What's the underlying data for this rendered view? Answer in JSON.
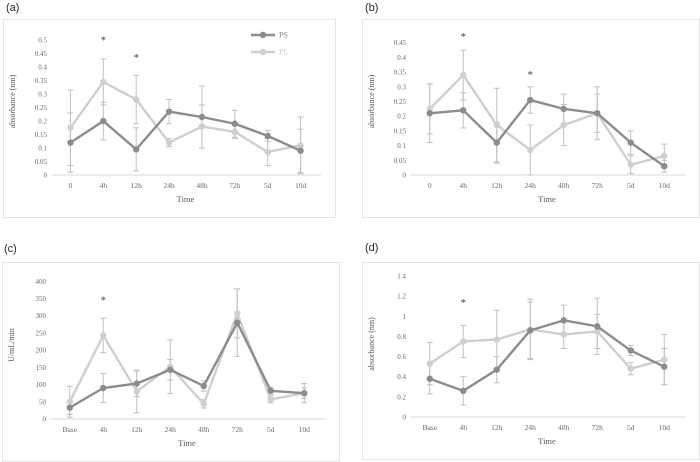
{
  "figure": {
    "background": "#ffffff"
  },
  "palette": {
    "series": [
      "#8c8c8c",
      "#cfcfcf"
    ],
    "error_bar": "#c1c1c1",
    "axis_line": "#d9d9d9",
    "tick_text": "#6b6b6b",
    "axis_title_text": "#595959",
    "panel_border": "#e5e5e5",
    "panel_label_text": "#2b2b2b",
    "asterisk": "#3d3d3d"
  },
  "chart_data": [
    {
      "panel_label": "(a)",
      "type": "line",
      "title": "",
      "xlabel": "Time",
      "ylabel": "absorbance (nm)",
      "categories": [
        "0",
        "4h",
        "12h",
        "24h",
        "48h",
        "72h",
        "5d",
        "10d"
      ],
      "ylim": [
        0,
        0.545
      ],
      "yticks": [
        "0",
        "0.05",
        "0.1",
        "0.15",
        "0.2",
        "0.25",
        "0.3",
        "0.35",
        "0.4",
        "0.45",
        "0.5"
      ],
      "grid": false,
      "legend_items": [
        "PS",
        "PL"
      ],
      "legend_position": "top-right",
      "series": [
        {
          "name": "PS",
          "values": [
            0.12,
            0.2,
            0.095,
            0.235,
            0.215,
            0.19,
            0.145,
            0.09
          ],
          "err": [
            0.11,
            0.07,
            0.08,
            0.045,
            0.115,
            0.05,
            0.02,
            0.08
          ]
        },
        {
          "name": "PL",
          "values": [
            0.175,
            0.345,
            0.28,
            0.12,
            0.18,
            0.16,
            0.085,
            0.11
          ],
          "err": [
            0.14,
            0.085,
            0.09,
            0.015,
            0.08,
            0.025,
            0.05,
            0.105
          ]
        }
      ],
      "annotations": [
        {
          "cat": "4h",
          "y": 0.51,
          "text": "*"
        },
        {
          "cat": "12h",
          "y": 0.445,
          "text": "*"
        }
      ]
    },
    {
      "panel_label": "(b)",
      "type": "line",
      "title": "",
      "xlabel": "Time",
      "ylabel": "absorbance (nm)",
      "categories": [
        "0",
        "4h",
        "12h",
        "24h",
        "48h",
        "72h",
        "5d",
        "10d"
      ],
      "ylim": [
        0,
        0.5
      ],
      "yticks": [
        "0",
        "0.05",
        "0.1",
        "0.15",
        "0.2",
        "0.25",
        "0.3",
        "0.35",
        "0.4",
        "0.45"
      ],
      "grid": false,
      "series": [
        {
          "name": "PS",
          "values": [
            0.21,
            0.22,
            0.11,
            0.255,
            0.225,
            0.21,
            0.11,
            0.03
          ],
          "err": [
            0.1,
            0.06,
            0.07,
            0.045,
            0.05,
            0.09,
            0.04,
            0.02
          ]
        },
        {
          "name": "PL",
          "values": [
            0.225,
            0.34,
            0.17,
            0.085,
            0.17,
            0.21,
            0.035,
            0.065
          ],
          "err": [
            0.085,
            0.085,
            0.125,
            0.085,
            0.07,
            0.065,
            0.03,
            0.04
          ]
        }
      ],
      "annotations": [
        {
          "cat": "4h",
          "y": 0.48,
          "text": "*"
        },
        {
          "cat": "24h",
          "y": 0.35,
          "text": "*"
        }
      ]
    },
    {
      "panel_label": "(c)",
      "type": "line",
      "title": "",
      "xlabel": "Time",
      "ylabel": "U/mL/min",
      "categories": [
        "Base",
        "4h",
        "12h",
        "24h",
        "48h",
        "72h",
        "5d",
        "10d"
      ],
      "ylim": [
        0,
        430
      ],
      "yticks": [
        "0",
        "50",
        "100",
        "150",
        "200",
        "250",
        "300",
        "350",
        "400"
      ],
      "grid": false,
      "series": [
        {
          "name": "PS",
          "values": [
            33,
            90,
            103,
            143,
            96,
            280,
            82,
            75
          ],
          "err": [
            20,
            42,
            37,
            30,
            15,
            98,
            10,
            15
          ]
        },
        {
          "name": "PL",
          "values": [
            50,
            243,
            80,
            152,
            44,
            307,
            57,
            75
          ],
          "err": [
            45,
            50,
            62,
            78,
            12,
            71,
            10,
            28
          ]
        }
      ],
      "annotations": [
        {
          "cat": "4h",
          "y": 353,
          "text": "*"
        }
      ]
    },
    {
      "panel_label": "(d)",
      "type": "line",
      "title": "",
      "xlabel": "Time",
      "ylabel": "absorbance (nm)",
      "categories": [
        "Base",
        "4h",
        "12h",
        "24h",
        "48h",
        "72h",
        "5d",
        "10d"
      ],
      "ylim": [
        0,
        1.45
      ],
      "yticks": [
        "0",
        "0.2",
        "0.4",
        "0.6",
        "0.8",
        "1",
        "1.2",
        "1.4"
      ],
      "grid": false,
      "series": [
        {
          "name": "PS",
          "values": [
            0.38,
            0.26,
            0.47,
            0.86,
            0.96,
            0.9,
            0.66,
            0.5
          ],
          "err": [
            0.15,
            0.14,
            0.13,
            0.28,
            0.15,
            0.28,
            0.05,
            0.18
          ]
        },
        {
          "name": "PL",
          "values": [
            0.53,
            0.75,
            0.77,
            0.87,
            0.82,
            0.85,
            0.48,
            0.57
          ],
          "err": [
            0.21,
            0.16,
            0.29,
            0.3,
            0.14,
            0.17,
            0.06,
            0.25
          ]
        }
      ],
      "annotations": [
        {
          "cat": "4h",
          "y": 1.16,
          "text": "*"
        }
      ]
    }
  ]
}
